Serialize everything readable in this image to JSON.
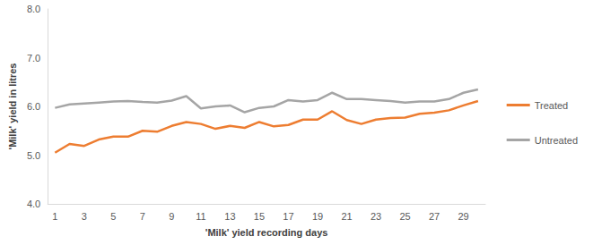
{
  "chart_data": {
    "type": "line",
    "x_label": "'Milk' yield recording days",
    "y_label": "'Milk' yield in litres",
    "categories": [
      "1",
      null,
      "3",
      null,
      "5",
      null,
      "7",
      null,
      "9",
      null,
      "11",
      null,
      "13",
      null,
      "15",
      null,
      "17",
      null,
      "19",
      null,
      "21",
      null,
      "23",
      null,
      "25",
      null,
      "27",
      null,
      "29",
      null
    ],
    "series": [
      {
        "name": "Treated",
        "color": "#ed7d31",
        "values": [
          5.05,
          5.23,
          5.19,
          5.32,
          5.38,
          5.38,
          5.5,
          5.48,
          5.6,
          5.68,
          5.64,
          5.54,
          5.6,
          5.56,
          5.68,
          5.59,
          5.62,
          5.73,
          5.73,
          5.9,
          5.72,
          5.64,
          5.73,
          5.76,
          5.77,
          5.85,
          5.87,
          5.92,
          6.02,
          6.11
        ]
      },
      {
        "name": "Untreated",
        "color": "#a5a5a5",
        "values": [
          5.97,
          6.04,
          6.06,
          6.08,
          6.1,
          6.11,
          6.09,
          6.08,
          6.12,
          6.21,
          5.96,
          6.0,
          6.02,
          5.88,
          5.97,
          6.0,
          6.13,
          6.1,
          6.13,
          6.28,
          6.15,
          6.15,
          6.13,
          6.11,
          6.08,
          6.1,
          6.1,
          6.15,
          6.28,
          6.35
        ]
      }
    ],
    "ylim": [
      4,
      8
    ],
    "yticks": [
      {
        "value": 4,
        "label": "4.0"
      },
      {
        "value": 5,
        "label": "5.0"
      },
      {
        "value": 6,
        "label": "6.0"
      },
      {
        "value": 7,
        "label": "7.0"
      },
      {
        "value": 8,
        "label": "8.0"
      }
    ],
    "grid": false,
    "legend": "right"
  }
}
